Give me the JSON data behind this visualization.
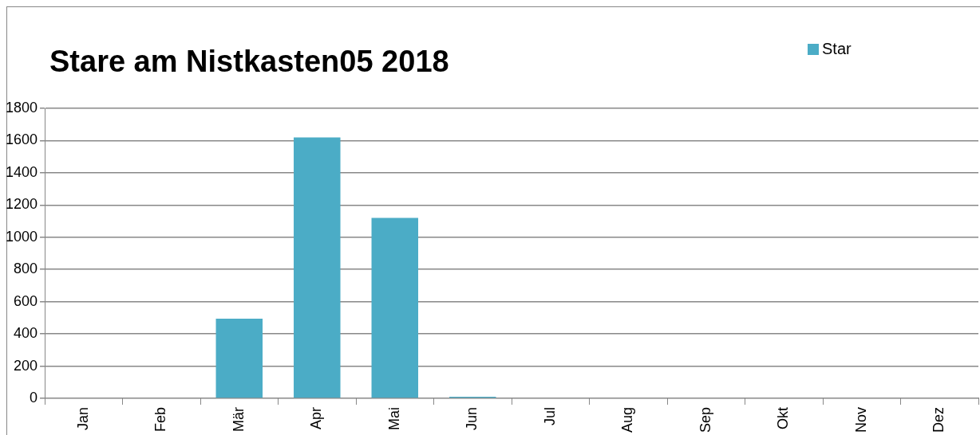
{
  "chart_data": {
    "type": "bar",
    "title": "Stare am Nistkasten05 2018",
    "categories": [
      "Jan",
      "Feb",
      "Mär",
      "Apr",
      "Mai",
      "Jun",
      "Jul",
      "Aug",
      "Sep",
      "Okt",
      "Nov",
      "Dez"
    ],
    "series": [
      {
        "name": "Star",
        "color": "#4bacc6",
        "values": [
          0,
          0,
          495,
          1620,
          1120,
          10,
          0,
          0,
          0,
          0,
          0,
          0
        ]
      }
    ],
    "ylim": [
      0,
      1800
    ],
    "yticks": [
      0,
      200,
      400,
      600,
      800,
      1000,
      1200,
      1400,
      1600,
      1800
    ],
    "grid": "y",
    "legend": "top right"
  }
}
